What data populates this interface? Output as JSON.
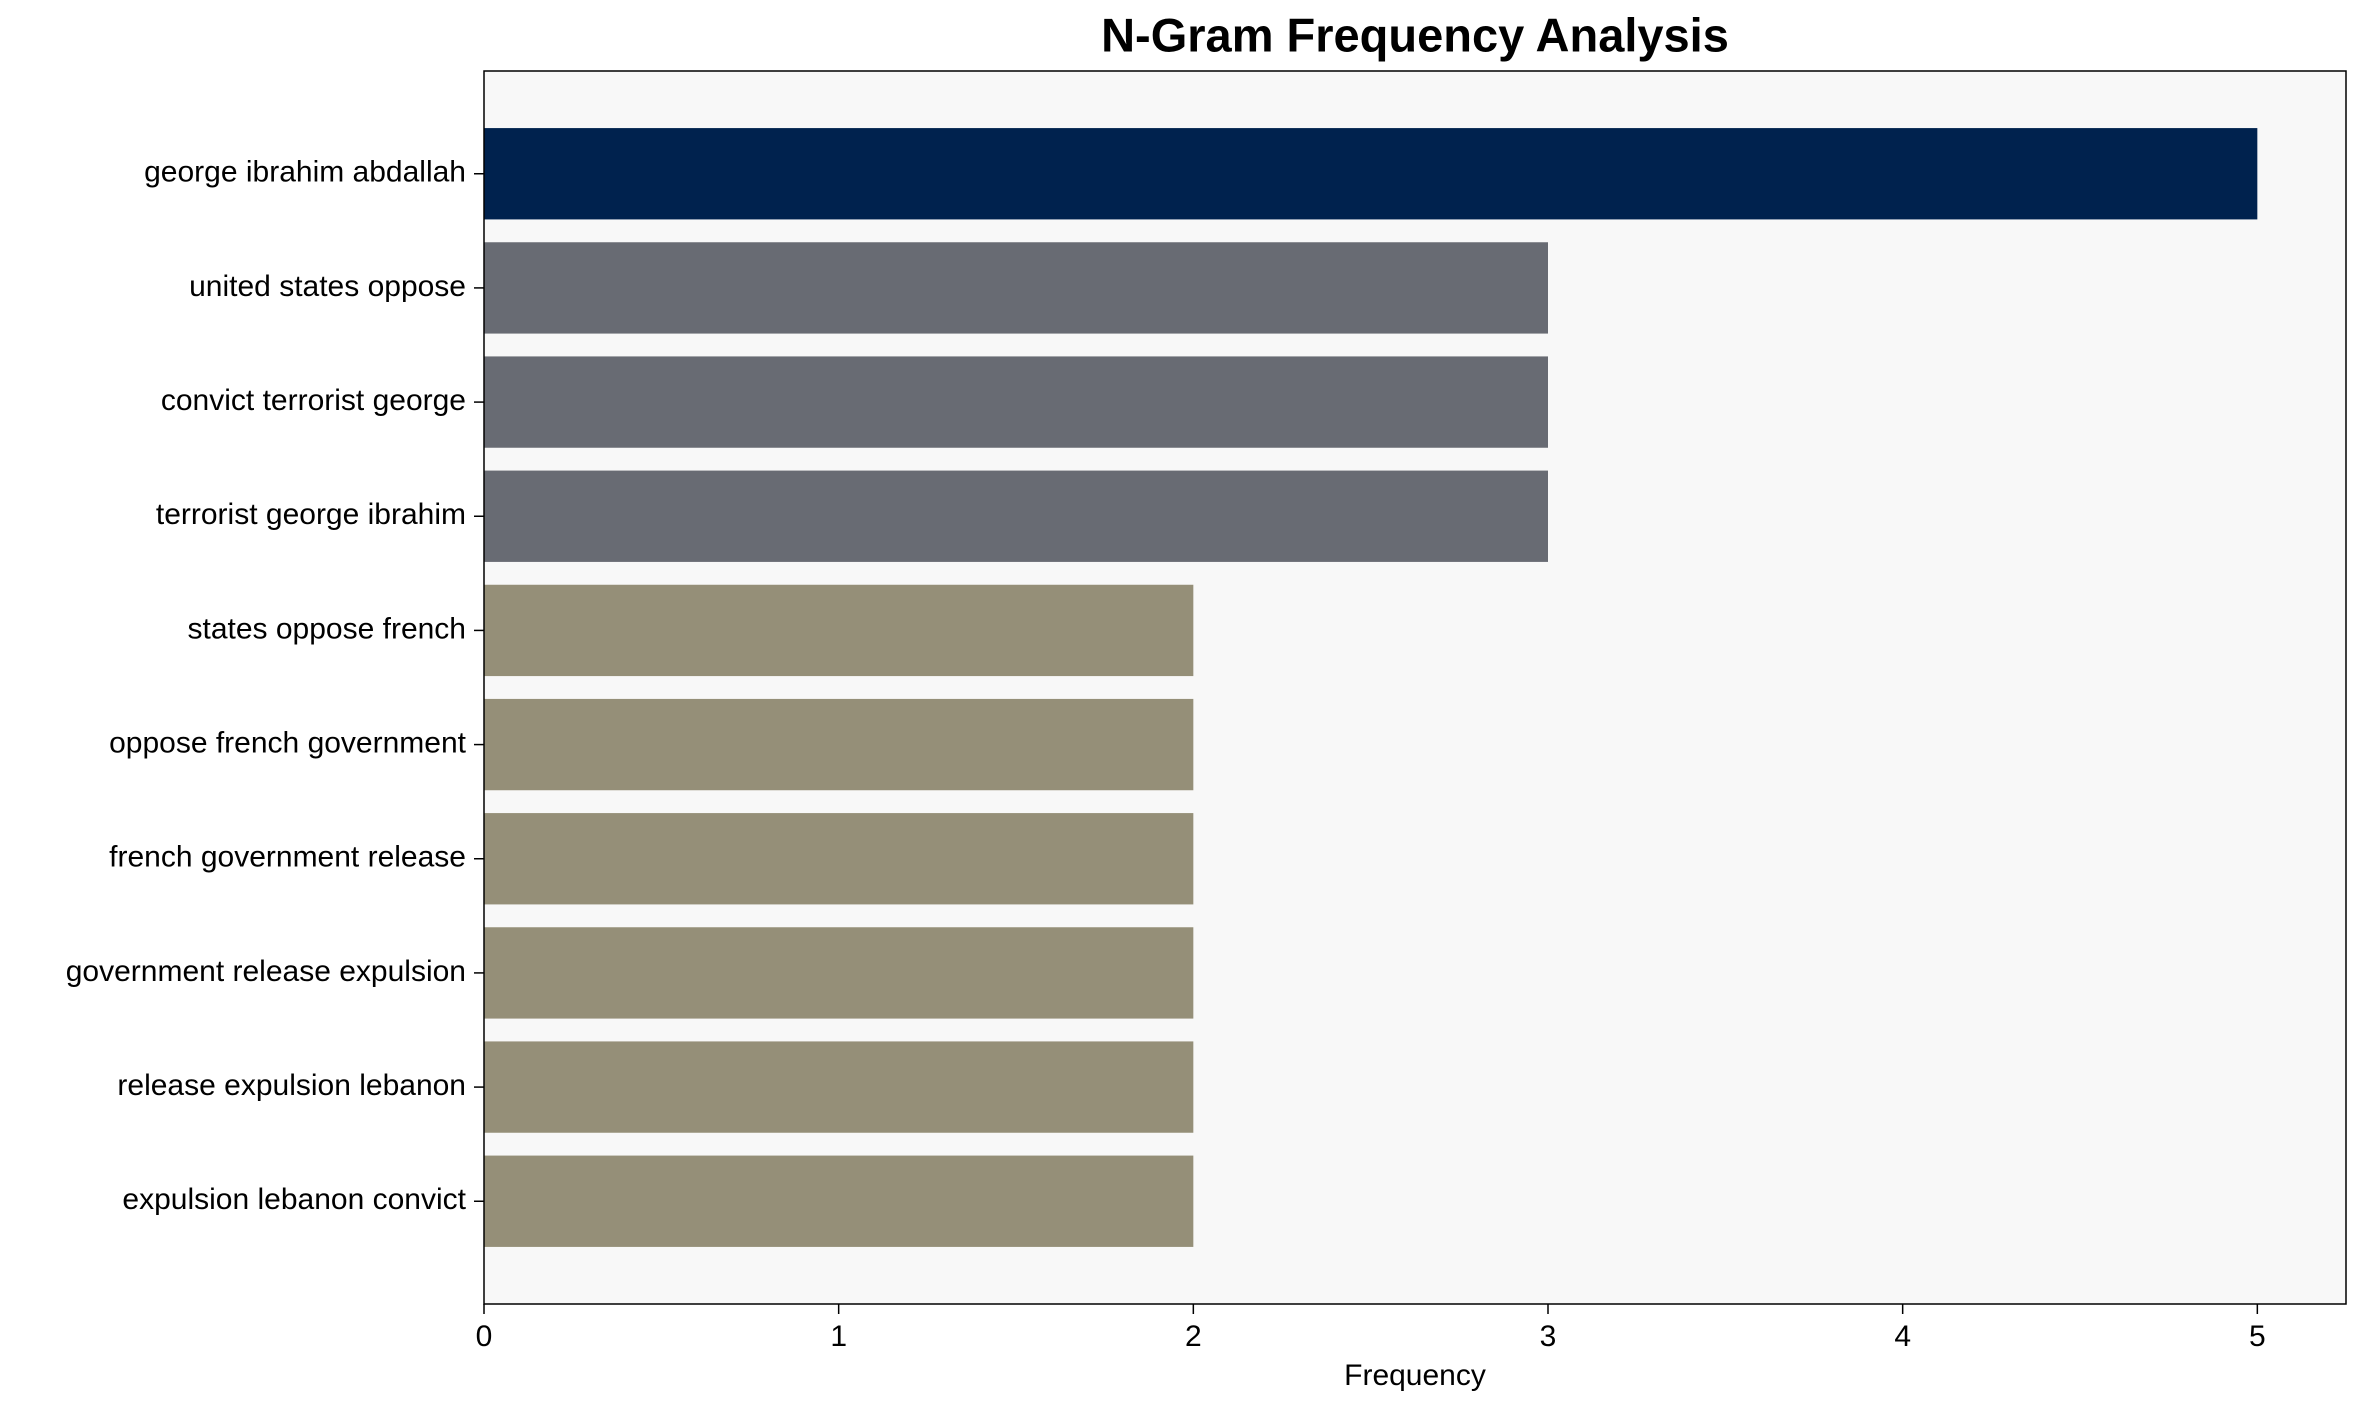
{
  "chart_data": {
    "type": "bar",
    "orientation": "horizontal",
    "title": "N-Gram Frequency Analysis",
    "x_label": "Frequency",
    "categories": [
      "george ibrahim abdallah",
      "united states oppose",
      "convict terrorist george",
      "terrorist george ibrahim",
      "states oppose french",
      "oppose french government",
      "french government release",
      "government release expulsion",
      "release expulsion lebanon",
      "expulsion lebanon convict"
    ],
    "values": [
      5,
      3,
      3,
      3,
      2,
      2,
      2,
      2,
      2,
      2
    ],
    "colors": [
      "#00224e",
      "#686b73",
      "#686b73",
      "#686b73",
      "#958f78",
      "#958f78",
      "#958f78",
      "#958f78",
      "#958f78",
      "#958f78"
    ],
    "xlim": [
      0,
      5.25
    ],
    "xticks": [
      0,
      1,
      2,
      3,
      4,
      5
    ],
    "grid": false
  }
}
